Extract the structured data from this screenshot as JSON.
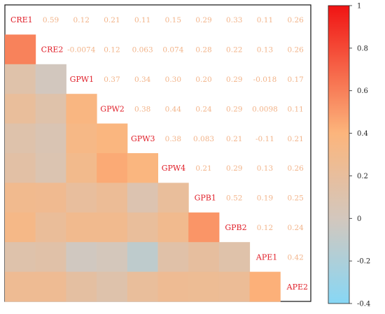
{
  "chart_data": {
    "type": "heatmap",
    "variables": [
      "CRE1",
      "CRE2",
      "GPW1",
      "GPW2",
      "GPW3",
      "GPW4",
      "GPB1",
      "GPB2",
      "APE1",
      "APE2"
    ],
    "upper_labels": [
      [
        "0.59",
        "0.12",
        "0.21",
        "0.11",
        "0.15",
        "0.29",
        "0.33",
        "0.11",
        "0.26"
      ],
      [
        "-0.0074",
        "0.12",
        "0.063",
        "0.074",
        "0.28",
        "0.22",
        "0.13",
        "0.26"
      ],
      [
        "0.37",
        "0.34",
        "0.30",
        "0.20",
        "0.29",
        "-0.018",
        "0.17"
      ],
      [
        "0.38",
        "0.44",
        "0.24",
        "0.29",
        "0.0098",
        "0.11"
      ],
      [
        "0.38",
        "0.083",
        "0.21",
        "-0.11",
        "0.21"
      ],
      [
        "0.21",
        "0.29",
        "0.13",
        "0.26"
      ],
      [
        "0.52",
        "0.19",
        "0.25"
      ],
      [
        "0.12",
        "0.24"
      ],
      [
        "0.42"
      ]
    ],
    "colorbar": {
      "min": -0.4,
      "max": 1,
      "ticks": [
        "1",
        "0.8",
        "0.6",
        "0.4",
        "0.2",
        "0",
        "-0.2",
        "-0.4"
      ],
      "tick_values": [
        1,
        0.8,
        0.6,
        0.4,
        0.2,
        0,
        -0.2,
        -0.4
      ]
    },
    "colors": {
      "negative_end": "#87d7f5",
      "zero": "#d3c7bd",
      "mid_positive": "#fcb57c",
      "positive_end": "#f01313",
      "label_red": "#e0202a",
      "value_text": "#f2b48a"
    }
  }
}
